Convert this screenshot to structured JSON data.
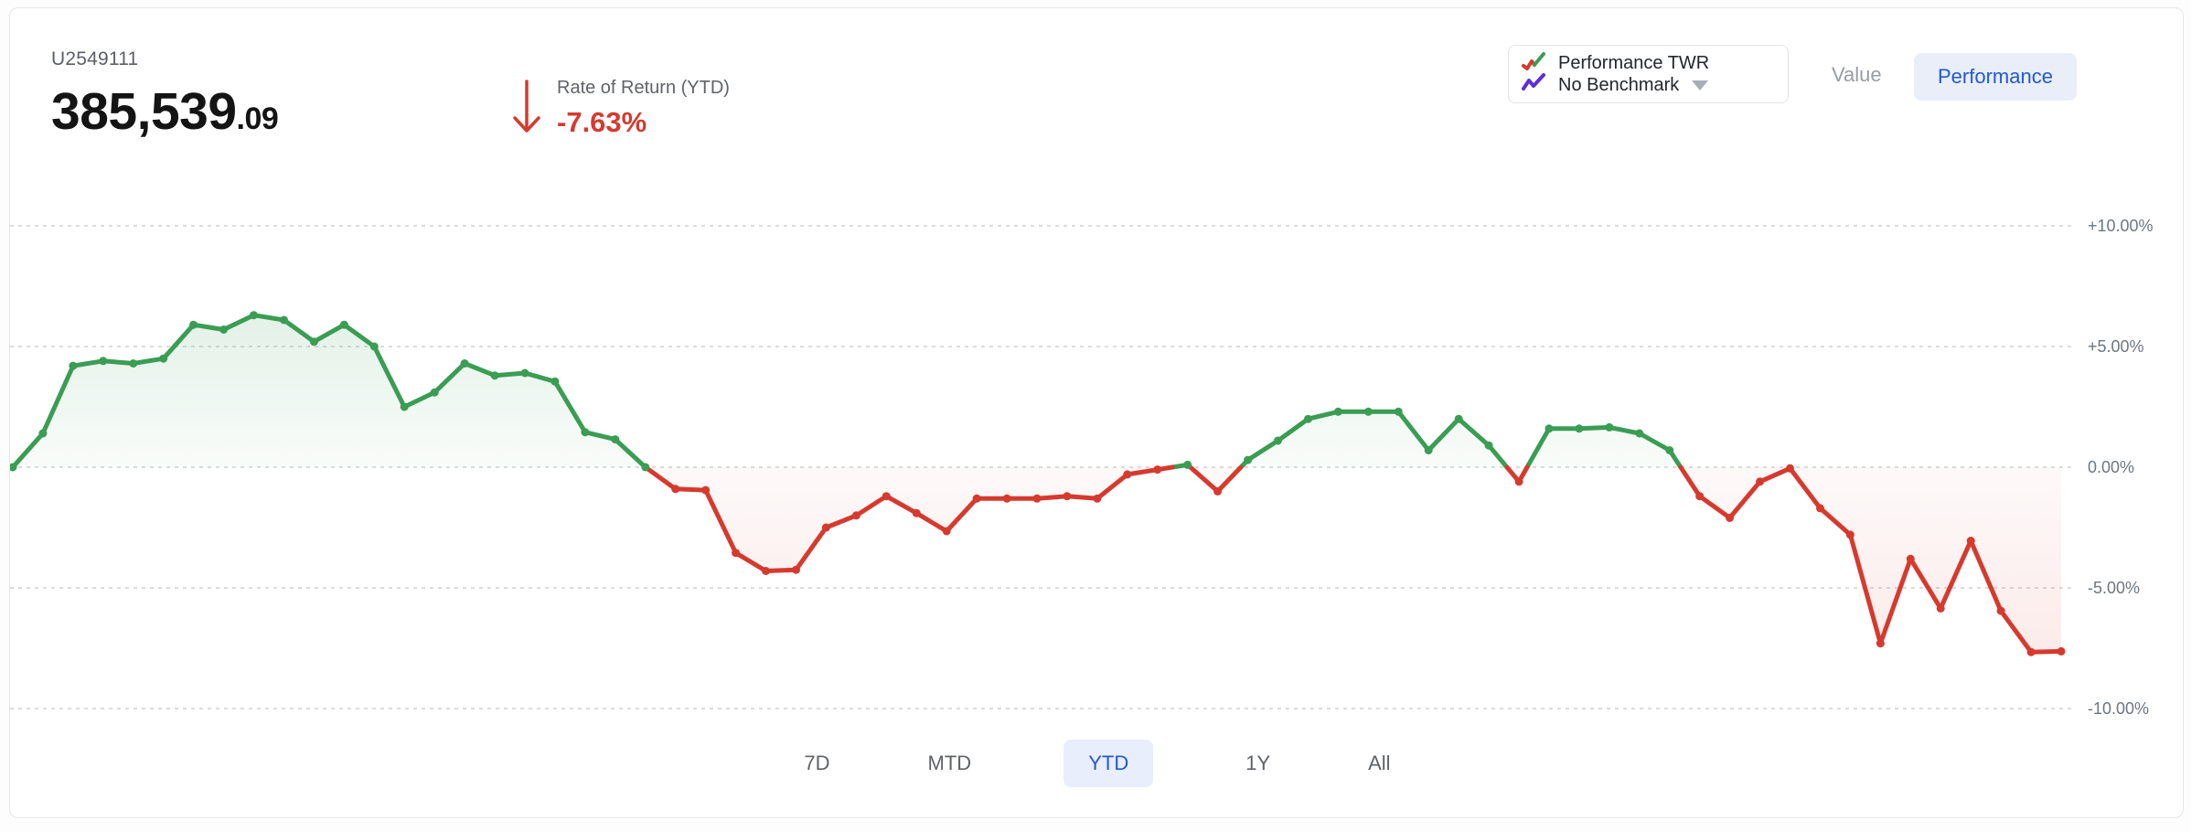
{
  "header": {
    "account_id": "U2549111",
    "balance_integer": "385,539",
    "balance_decimal": ".09",
    "rate_label": "Rate of Return (YTD)",
    "rate_value": "-7.63%",
    "rate_direction": "down"
  },
  "legend": {
    "series1_label": "Performance TWR",
    "series2_label": "No Benchmark"
  },
  "view_tabs": [
    {
      "label": "Value",
      "selected": false
    },
    {
      "label": "Performance",
      "selected": true
    }
  ],
  "range_buttons": [
    {
      "label": "7D",
      "selected": false
    },
    {
      "label": "MTD",
      "selected": false
    },
    {
      "label": "YTD",
      "selected": true
    },
    {
      "label": "1Y",
      "selected": false
    },
    {
      "label": "All",
      "selected": false
    }
  ],
  "colors": {
    "positive": "#3a9d53",
    "negative": "#d63a2e",
    "benchmark": "#5b2fd8",
    "accent_blue": "#2458cf",
    "accent_blue_bg": "#e9eef8",
    "grid": "#dcdcdc",
    "muted": "#5f6368",
    "tick": "#6e7680"
  },
  "chart_data": {
    "type": "line",
    "series": [
      {
        "name": "Performance TWR",
        "values": [
          0.0,
          1.4,
          4.2,
          4.4,
          4.3,
          4.5,
          5.9,
          5.7,
          6.3,
          6.1,
          5.2,
          5.9,
          5.0,
          2.5,
          3.1,
          4.3,
          3.8,
          3.9,
          3.55,
          1.45,
          1.15,
          0.0,
          -0.9,
          -0.95,
          -3.55,
          -4.3,
          -4.25,
          -2.5,
          -2.0,
          -1.2,
          -1.9,
          -2.65,
          -1.3,
          -1.3,
          -1.3,
          -1.2,
          -1.3,
          -0.3,
          -0.1,
          0.1,
          -1.0,
          0.3,
          1.1,
          2.0,
          2.3,
          2.3,
          2.3,
          0.7,
          2.0,
          0.9,
          -0.6,
          1.6,
          1.6,
          1.65,
          1.4,
          0.7,
          -1.2,
          -2.1,
          -0.6,
          -0.05,
          -1.7,
          -2.8,
          -7.3,
          -3.8,
          -5.85,
          -3.05,
          -5.95,
          -7.66,
          -7.63
        ]
      }
    ],
    "benchmark_series": "No Benchmark (none plotted)",
    "ylim": [
      -10,
      10
    ],
    "ytick_values": [
      10,
      5,
      0,
      -5,
      -10
    ],
    "ytick_labels": [
      "+10.00%",
      "+5.00%",
      "0.00%",
      "-5.00%",
      "-10.00%"
    ],
    "yaxis_position": "right",
    "grid": "dashed horizontal lines at each tick",
    "style": "green line/fill above 0%, red line/fill below 0%, dot markers on points",
    "final_value_pct": -7.63
  }
}
